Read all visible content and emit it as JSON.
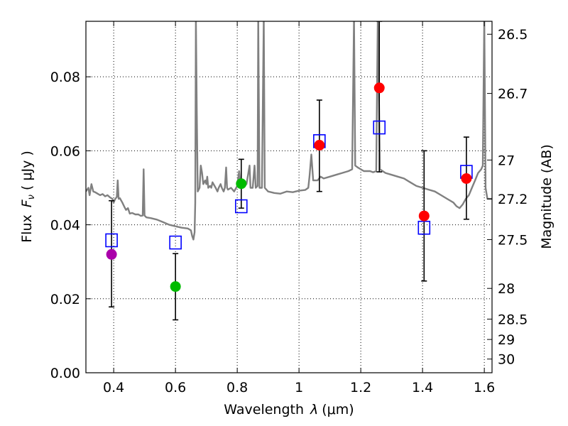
{
  "chart_data": {
    "type": "scatter",
    "xlabel_main": "Wavelength",
    "xlabel_symbol": "λ",
    "xlabel_unit": "(μm)",
    "ylabel_main": "Flux",
    "ylabel_symbol": "F",
    "ylabel_subscript": "ν",
    "ylabel_unit": "( μJy )",
    "y2label": "Magnitude (AB)",
    "xlim": [
      0.31,
      1.625
    ],
    "ylim": [
      0.0,
      0.095
    ],
    "grid": true,
    "x_ticks": [
      {
        "value": 0.4,
        "label": "0.4"
      },
      {
        "value": 0.6,
        "label": "0.6"
      },
      {
        "value": 0.8,
        "label": "0.8"
      },
      {
        "value": 1.0,
        "label": "1"
      },
      {
        "value": 1.2,
        "label": "1.2"
      },
      {
        "value": 1.4,
        "label": "1.4"
      },
      {
        "value": 1.6,
        "label": "1.6"
      }
    ],
    "y_ticks": [
      {
        "value": 0.0,
        "label": "0.00"
      },
      {
        "value": 0.02,
        "label": "0.02"
      },
      {
        "value": 0.04,
        "label": "0.04"
      },
      {
        "value": 0.06,
        "label": "0.06"
      },
      {
        "value": 0.08,
        "label": "0.08"
      }
    ],
    "y2_ticks": [
      {
        "flux": 0.0915,
        "label": "26.5"
      },
      {
        "flux": 0.0755,
        "label": "26.7"
      },
      {
        "flux": 0.0575,
        "label": "27"
      },
      {
        "flux": 0.047,
        "label": "27.2"
      },
      {
        "flux": 0.036,
        "label": "27.5"
      },
      {
        "flux": 0.0228,
        "label": "28"
      },
      {
        "flux": 0.0145,
        "label": "28.5"
      },
      {
        "flux": 0.009,
        "label": "29"
      },
      {
        "flux": 0.0037,
        "label": "30"
      }
    ],
    "observed": [
      {
        "x": 0.393,
        "y": 0.032,
        "err_low": 0.0178,
        "err_high": 0.0465,
        "color": "#aa00aa"
      },
      {
        "x": 0.6,
        "y": 0.0233,
        "err_low": 0.0143,
        "err_high": 0.0322,
        "color": "#00bb00"
      },
      {
        "x": 0.813,
        "y": 0.0511,
        "err_low": 0.0445,
        "err_high": 0.0577,
        "color": "#00bb00"
      },
      {
        "x": 1.066,
        "y": 0.0615,
        "err_low": 0.049,
        "err_high": 0.0737,
        "color": "#ff0000"
      },
      {
        "x": 1.26,
        "y": 0.077,
        "err_low": 0.0543,
        "err_high": 0.095,
        "color": "#ff0000"
      },
      {
        "x": 1.405,
        "y": 0.0424,
        "err_low": 0.0248,
        "err_high": 0.06,
        "color": "#ff0000"
      },
      {
        "x": 1.542,
        "y": 0.0525,
        "err_low": 0.0415,
        "err_high": 0.0637,
        "color": "#ff0000"
      }
    ],
    "model_photometry": [
      {
        "x": 0.393,
        "y": 0.0358
      },
      {
        "x": 0.6,
        "y": 0.0352
      },
      {
        "x": 0.813,
        "y": 0.045
      },
      {
        "x": 1.066,
        "y": 0.0626
      },
      {
        "x": 1.26,
        "y": 0.0663
      },
      {
        "x": 1.405,
        "y": 0.0392
      },
      {
        "x": 1.542,
        "y": 0.0543
      }
    ],
    "spectrum": {
      "color": "#808080",
      "points": [
        [
          0.31,
          0.049
        ],
        [
          0.318,
          0.05
        ],
        [
          0.322,
          0.048
        ],
        [
          0.328,
          0.051
        ],
        [
          0.334,
          0.049
        ],
        [
          0.34,
          0.0488
        ],
        [
          0.348,
          0.0484
        ],
        [
          0.356,
          0.048
        ],
        [
          0.364,
          0.0483
        ],
        [
          0.372,
          0.0477
        ],
        [
          0.38,
          0.048
        ],
        [
          0.388,
          0.0474
        ],
        [
          0.396,
          0.047
        ],
        [
          0.4,
          0.046
        ],
        [
          0.405,
          0.047
        ],
        [
          0.41,
          0.0475
        ],
        [
          0.413,
          0.052
        ],
        [
          0.416,
          0.047
        ],
        [
          0.42,
          0.0472
        ],
        [
          0.428,
          0.046
        ],
        [
          0.436,
          0.0446
        ],
        [
          0.44,
          0.044
        ],
        [
          0.446,
          0.0445
        ],
        [
          0.452,
          0.043
        ],
        [
          0.46,
          0.0432
        ],
        [
          0.47,
          0.0428
        ],
        [
          0.48,
          0.0428
        ],
        [
          0.488,
          0.0424
        ],
        [
          0.494,
          0.0425
        ],
        [
          0.497,
          0.055
        ],
        [
          0.5,
          0.0425
        ],
        [
          0.506,
          0.042
        ],
        [
          0.52,
          0.0418
        ],
        [
          0.54,
          0.0414
        ],
        [
          0.56,
          0.0407
        ],
        [
          0.58,
          0.04
        ],
        [
          0.6,
          0.0396
        ],
        [
          0.62,
          0.0392
        ],
        [
          0.64,
          0.039
        ],
        [
          0.65,
          0.0385
        ],
        [
          0.654,
          0.037
        ],
        [
          0.658,
          0.036
        ],
        [
          0.662,
          0.038
        ],
        [
          0.664,
          0.046
        ],
        [
          0.666,
          0.096
        ],
        [
          0.669,
          0.07
        ],
        [
          0.672,
          0.049
        ],
        [
          0.678,
          0.05
        ],
        [
          0.682,
          0.056
        ],
        [
          0.686,
          0.054
        ],
        [
          0.69,
          0.051
        ],
        [
          0.696,
          0.052
        ],
        [
          0.7,
          0.051
        ],
        [
          0.703,
          0.053
        ],
        [
          0.706,
          0.05
        ],
        [
          0.712,
          0.0505
        ],
        [
          0.716,
          0.05
        ],
        [
          0.72,
          0.0515
        ],
        [
          0.73,
          0.05
        ],
        [
          0.736,
          0.049
        ],
        [
          0.74,
          0.05
        ],
        [
          0.746,
          0.051
        ],
        [
          0.75,
          0.05
        ],
        [
          0.756,
          0.049
        ],
        [
          0.76,
          0.05
        ],
        [
          0.764,
          0.0555
        ],
        [
          0.767,
          0.05
        ],
        [
          0.77,
          0.0495
        ],
        [
          0.78,
          0.05
        ],
        [
          0.79,
          0.049
        ],
        [
          0.8,
          0.0505
        ],
        [
          0.806,
          0.0545
        ],
        [
          0.81,
          0.051
        ],
        [
          0.82,
          0.0505
        ],
        [
          0.83,
          0.051
        ],
        [
          0.84,
          0.056
        ],
        [
          0.843,
          0.05
        ],
        [
          0.85,
          0.05
        ],
        [
          0.856,
          0.056
        ],
        [
          0.86,
          0.05
        ],
        [
          0.866,
          0.0505
        ],
        [
          0.868,
          0.096
        ],
        [
          0.872,
          0.05
        ],
        [
          0.88,
          0.05
        ],
        [
          0.886,
          0.096
        ],
        [
          0.889,
          0.05
        ],
        [
          0.9,
          0.049
        ],
        [
          0.92,
          0.0486
        ],
        [
          0.94,
          0.0484
        ],
        [
          0.96,
          0.049
        ],
        [
          0.98,
          0.0488
        ],
        [
          1.0,
          0.0492
        ],
        [
          1.02,
          0.0494
        ],
        [
          1.03,
          0.05
        ],
        [
          1.034,
          0.053
        ],
        [
          1.04,
          0.059
        ],
        [
          1.046,
          0.052
        ],
        [
          1.06,
          0.052
        ],
        [
          1.07,
          0.053
        ],
        [
          1.08,
          0.0525
        ],
        [
          1.1,
          0.053
        ],
        [
          1.12,
          0.0535
        ],
        [
          1.14,
          0.054
        ],
        [
          1.16,
          0.0545
        ],
        [
          1.172,
          0.055
        ],
        [
          1.178,
          0.096
        ],
        [
          1.182,
          0.056
        ],
        [
          1.19,
          0.0555
        ],
        [
          1.2,
          0.055
        ],
        [
          1.21,
          0.0545
        ],
        [
          1.22,
          0.0545
        ],
        [
          1.23,
          0.0545
        ],
        [
          1.24,
          0.0542
        ],
        [
          1.25,
          0.0545
        ],
        [
          1.255,
          0.096
        ],
        [
          1.262,
          0.055
        ],
        [
          1.28,
          0.054
        ],
        [
          1.3,
          0.0535
        ],
        [
          1.32,
          0.053
        ],
        [
          1.34,
          0.0525
        ],
        [
          1.36,
          0.0515
        ],
        [
          1.38,
          0.0505
        ],
        [
          1.4,
          0.05
        ],
        [
          1.42,
          0.0495
        ],
        [
          1.44,
          0.049
        ],
        [
          1.46,
          0.048
        ],
        [
          1.48,
          0.047
        ],
        [
          1.5,
          0.046
        ],
        [
          1.51,
          0.045
        ],
        [
          1.52,
          0.0445
        ],
        [
          1.53,
          0.0455
        ],
        [
          1.54,
          0.047
        ],
        [
          1.55,
          0.048
        ],
        [
          1.56,
          0.05
        ],
        [
          1.57,
          0.052
        ],
        [
          1.58,
          0.054
        ],
        [
          1.59,
          0.055
        ],
        [
          1.595,
          0.056
        ],
        [
          1.6,
          0.096
        ],
        [
          1.604,
          0.05
        ],
        [
          1.61,
          0.047
        ],
        [
          1.625,
          0.047
        ]
      ]
    }
  }
}
